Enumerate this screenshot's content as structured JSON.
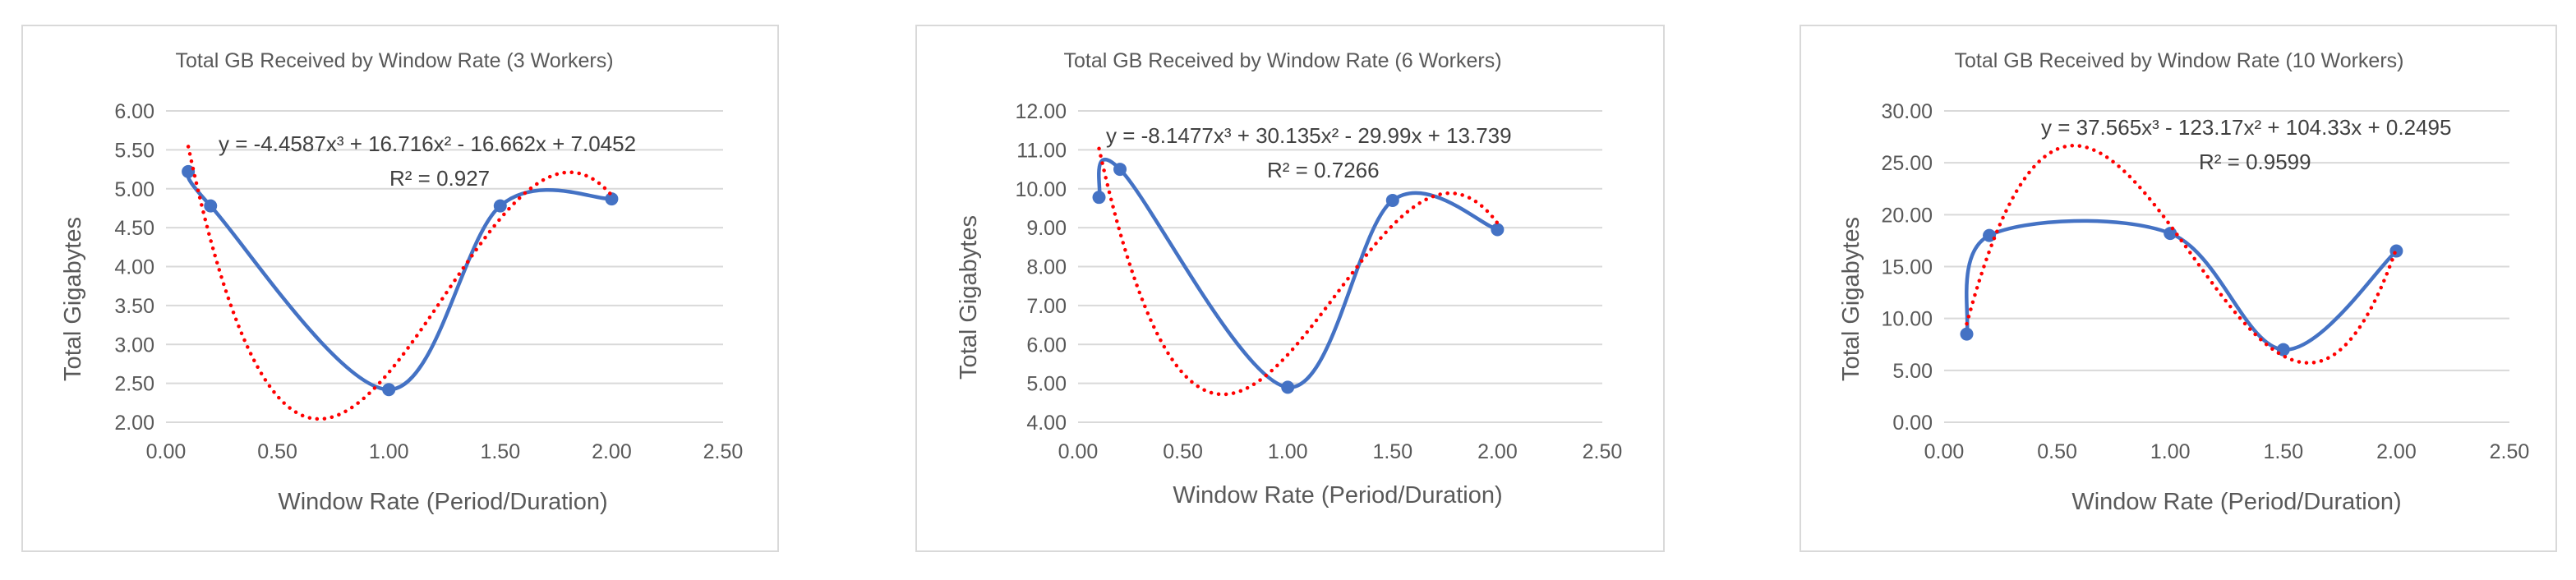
{
  "chart_data": [
    {
      "type": "scatter",
      "title": "Total GB Received by Window Rate (3 Workers)",
      "xlabel": "Window Rate (Period/Duration)",
      "ylabel": "Total Gigabytes",
      "xlim": [
        0,
        2.5
      ],
      "ylim": [
        2,
        6
      ],
      "xticks": [
        0,
        0.5,
        1,
        1.5,
        2,
        2.5
      ],
      "yticks": [
        2,
        2.5,
        3,
        3.5,
        4,
        4.5,
        5,
        5.5,
        6
      ],
      "tick_decimals": 2,
      "grid": true,
      "series": [
        {
          "x": [
            0.1,
            0.2,
            1.0,
            1.5,
            2.0
          ],
          "y": [
            5.22,
            4.78,
            2.42,
            4.78,
            4.87
          ],
          "color": "#4472c4",
          "style": "smoothed-line-with-markers"
        }
      ],
      "trendline": {
        "type": "polynomial",
        "order": 3,
        "coefficients": [
          -4.4587,
          16.716,
          -16.662,
          7.0452
        ],
        "x_range": [
          0.1,
          2.0
        ],
        "color": "#ff0000",
        "style": "dotted"
      },
      "equation_label": "y = -4.4587x³ + 16.716x² - 16.662x + 7.0452",
      "r2_label": "R² = 0.927"
    },
    {
      "type": "scatter",
      "title": "Total GB Received by Window Rate (6 Workers)",
      "xlabel": "Window Rate (Period/Duration)",
      "ylabel": "Total Gigabytes",
      "xlim": [
        0,
        2.5
      ],
      "ylim": [
        4,
        12
      ],
      "xticks": [
        0,
        0.5,
        1,
        1.5,
        2,
        2.5
      ],
      "yticks": [
        4,
        5,
        6,
        7,
        8,
        9,
        10,
        11,
        12
      ],
      "tick_decimals": 2,
      "grid": true,
      "series": [
        {
          "x": [
            0.1,
            0.2,
            1.0,
            1.5,
            2.0
          ],
          "y": [
            9.78,
            10.5,
            4.9,
            9.7,
            8.95
          ],
          "color": "#4472c4",
          "style": "smoothed-line-with-markers"
        }
      ],
      "trendline": {
        "type": "polynomial",
        "order": 3,
        "coefficients": [
          -8.1477,
          30.135,
          -29.99,
          13.739
        ],
        "x_range": [
          0.1,
          2.0
        ],
        "color": "#ff0000",
        "style": "dotted"
      },
      "equation_label": "y = -8.1477x³ + 30.135x² - 29.99x + 13.739",
      "r2_label": "R² = 0.7266"
    },
    {
      "type": "scatter",
      "title": "Total GB Received by Window Rate (10 Workers)",
      "xlabel": "Window Rate (Period/Duration)",
      "ylabel": "Total Gigabytes",
      "xlim": [
        0,
        2.5
      ],
      "ylim": [
        0,
        30
      ],
      "xticks": [
        0,
        0.5,
        1,
        1.5,
        2,
        2.5
      ],
      "yticks": [
        0,
        5,
        10,
        15,
        20,
        25,
        30
      ],
      "tick_decimals": 2,
      "grid": true,
      "series": [
        {
          "x": [
            0.1,
            0.2,
            1.0,
            1.5,
            2.0
          ],
          "y": [
            8.5,
            18.0,
            18.2,
            7.0,
            16.5
          ],
          "color": "#4472c4",
          "style": "smoothed-line-with-markers"
        }
      ],
      "trendline": {
        "type": "polynomial",
        "order": 3,
        "coefficients": [
          37.565,
          -123.17,
          104.33,
          0.2495
        ],
        "x_range": [
          0.1,
          2.0
        ],
        "color": "#ff0000",
        "style": "dotted"
      },
      "equation_label": "y = 37.565x³ - 123.17x² + 104.33x + 0.2495",
      "r2_label": "R² = 0.9599"
    }
  ]
}
